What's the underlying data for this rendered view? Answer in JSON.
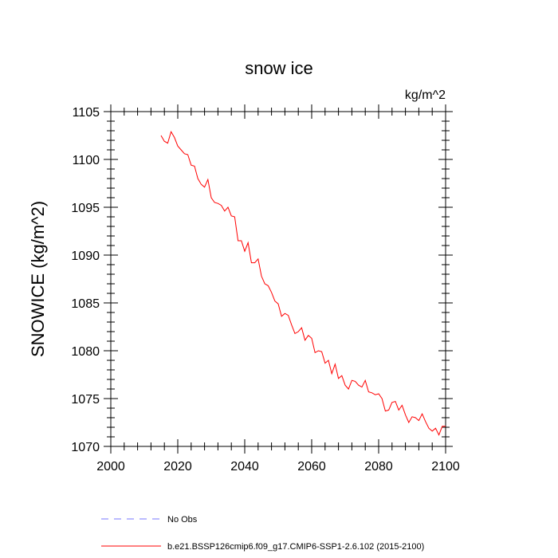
{
  "chart_data": {
    "type": "line",
    "title": "snow ice",
    "units": "kg/m^2",
    "ylabel": "SNOWICE  (kg/m^2)",
    "xlabel": "",
    "xlim": [
      2000,
      2100
    ],
    "ylim": [
      1070,
      1105
    ],
    "x_ticks": [
      2000,
      2020,
      2040,
      2060,
      2080,
      2100
    ],
    "y_ticks": [
      1070,
      1075,
      1080,
      1085,
      1090,
      1095,
      1100,
      1105
    ],
    "colors": {
      "model": "#ff0000",
      "obs": "#7777ff"
    },
    "legend": [
      {
        "label": "No Obs",
        "style": "dashed",
        "color": "#7777ff"
      },
      {
        "label": "b.e21.BSSP126cmip6.f09_g17.CMIP6-SSP1-2.6.102 (2015-2100)",
        "style": "solid",
        "color": "#ff0000"
      }
    ],
    "series": [
      {
        "x": [
          2015,
          2016,
          2017,
          2018,
          2019,
          2020,
          2021,
          2022,
          2023,
          2024,
          2025,
          2026,
          2027,
          2028,
          2029,
          2030,
          2031,
          2032,
          2033,
          2034,
          2035,
          2036,
          2037,
          2038,
          2039,
          2040,
          2041,
          2042,
          2043,
          2044,
          2045,
          2046,
          2047,
          2048,
          2049,
          2050,
          2051,
          2052,
          2053,
          2054,
          2055,
          2056,
          2057,
          2058,
          2059,
          2060,
          2061,
          2062,
          2063,
          2064,
          2065,
          2066,
          2067,
          2068,
          2069,
          2070,
          2071,
          2072,
          2073,
          2074,
          2075,
          2076,
          2077,
          2078,
          2079,
          2080,
          2081,
          2082,
          2083,
          2084,
          2085,
          2086,
          2087,
          2088,
          2089,
          2090,
          2091,
          2092,
          2093,
          2094,
          2095,
          2096,
          2097,
          2098,
          2099,
          2100
        ],
        "values": [
          1102.5,
          1101.9,
          1101.7,
          1102.9,
          1102.3,
          1101.4,
          1101.0,
          1100.6,
          1100.5,
          1099.4,
          1099.3,
          1098.0,
          1097.4,
          1097.1,
          1097.9,
          1096.0,
          1095.5,
          1095.4,
          1095.2,
          1094.6,
          1095.0,
          1094.1,
          1094.0,
          1091.5,
          1091.5,
          1090.4,
          1091.3,
          1089.2,
          1089.2,
          1089.6,
          1087.8,
          1087.0,
          1086.8,
          1086.1,
          1085.2,
          1084.9,
          1083.6,
          1083.9,
          1083.7,
          1082.7,
          1081.8,
          1082.0,
          1082.4,
          1081.1,
          1081.6,
          1081.3,
          1079.8,
          1080.0,
          1079.9,
          1078.7,
          1079.0,
          1077.6,
          1078.6,
          1077.1,
          1077.4,
          1076.4,
          1076.0,
          1076.9,
          1076.8,
          1076.4,
          1076.2,
          1076.9,
          1075.7,
          1075.6,
          1075.4,
          1075.5,
          1075.0,
          1073.7,
          1073.8,
          1074.6,
          1074.7,
          1073.8,
          1074.3,
          1073.3,
          1072.5,
          1073.1,
          1073.0,
          1072.7,
          1073.4,
          1072.6,
          1071.9,
          1071.6,
          1071.9,
          1071.2,
          1072.1,
          1072.1
        ]
      }
    ]
  }
}
